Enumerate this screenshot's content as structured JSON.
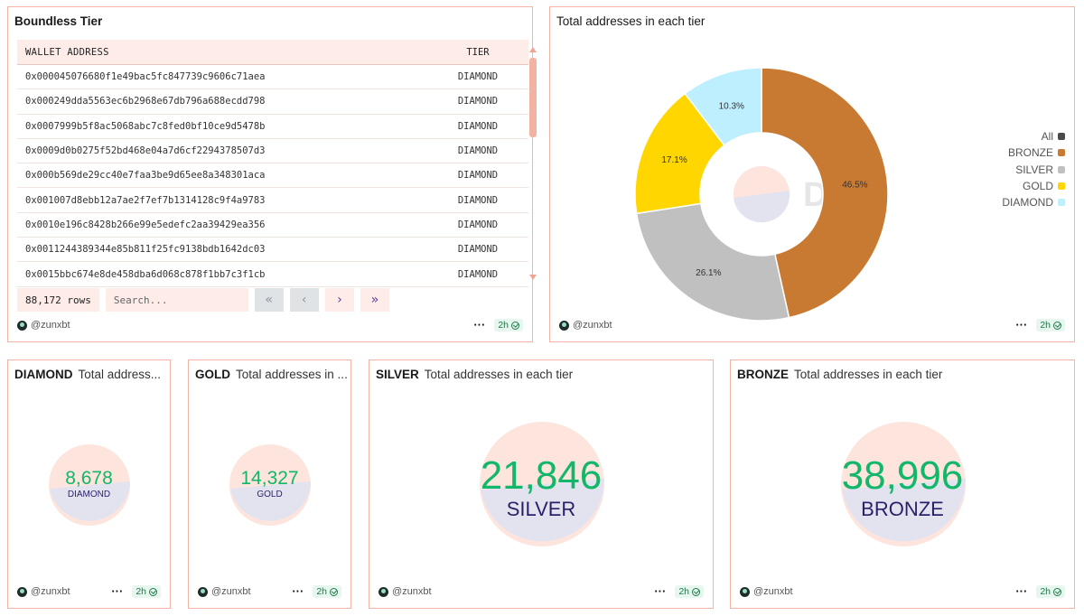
{
  "table_panel": {
    "title": "Boundless Tier",
    "columns": [
      "WALLET ADDRESS",
      "TIER"
    ],
    "rows": [
      [
        "0x000045076680f1e49bac5fc847739c9606c71aea",
        "DIAMOND"
      ],
      [
        "0x000249dda5563ec6b2968e67db796a688ecdd798",
        "DIAMOND"
      ],
      [
        "0x0007999b5f8ac5068abc7c8fed0bf10ce9d5478b",
        "DIAMOND"
      ],
      [
        "0x0009d0b0275f52bd468e04a7d6cf2294378507d3",
        "DIAMOND"
      ],
      [
        "0x000b569de29cc40e7faa3be9d65ee8a348301aca",
        "DIAMOND"
      ],
      [
        "0x001007d8ebb12a7ae2f7ef7b1314128c9f4a9783",
        "DIAMOND"
      ],
      [
        "0x0010e196c8428b266e99e5edefc2aa39429ea356",
        "DIAMOND"
      ],
      [
        "0x0011244389344e85b811f25fc9138bdb1642dc03",
        "DIAMOND"
      ],
      [
        "0x0015bbc674e8de458dba6d068c878f1bb7c3f1cb",
        "DIAMOND"
      ]
    ],
    "row_count": "88,172 rows",
    "search_placeholder": "Search...",
    "pager": [
      "«",
      "‹",
      "›",
      "»"
    ],
    "author": "@zunxbt",
    "age": "2h"
  },
  "chart_panel": {
    "title": "Total addresses in each tier",
    "watermark": "Dune",
    "author": "@zunxbt",
    "age": "2h"
  },
  "chart_data": {
    "type": "pie",
    "title": "Total addresses in each tier",
    "donut": true,
    "categories": [
      "BRONZE",
      "SILVER",
      "GOLD",
      "DIAMOND"
    ],
    "values": [
      38996,
      21846,
      14327,
      8678
    ],
    "labels": [
      "46.5%",
      "26.1%",
      "17.1%",
      "10.3%"
    ],
    "colors": [
      "#c97a32",
      "#c0c0c0",
      "#ffd600",
      "#bdefff"
    ],
    "legend": [
      "All",
      "BRONZE",
      "SILVER",
      "GOLD",
      "DIAMOND"
    ],
    "legend_colors": [
      "#4a4a4a",
      "#c97a32",
      "#c0c0c0",
      "#ffd600",
      "#bdefff"
    ],
    "legend_position": "right"
  },
  "counters": [
    {
      "tier": "DIAMOND",
      "subtitle": "Total address...",
      "value": "8,678",
      "label": "DIAMOND",
      "author": "@zunxbt",
      "age": "2h"
    },
    {
      "tier": "GOLD",
      "subtitle": "Total addresses in ...",
      "value": "14,327",
      "label": "GOLD",
      "author": "@zunxbt",
      "age": "2h"
    },
    {
      "tier": "SILVER",
      "subtitle": "Total addresses in each tier",
      "value": "21,846",
      "label": "SILVER",
      "author": "@zunxbt",
      "age": "2h"
    },
    {
      "tier": "BRONZE",
      "subtitle": "Total addresses in each tier",
      "value": "38,996",
      "label": "BRONZE",
      "author": "@zunxbt",
      "age": "2h"
    }
  ],
  "colors": {
    "accent_border": "#f5b5a6",
    "counter_green": "#12b76a",
    "counter_label": "#2b1f6b"
  }
}
